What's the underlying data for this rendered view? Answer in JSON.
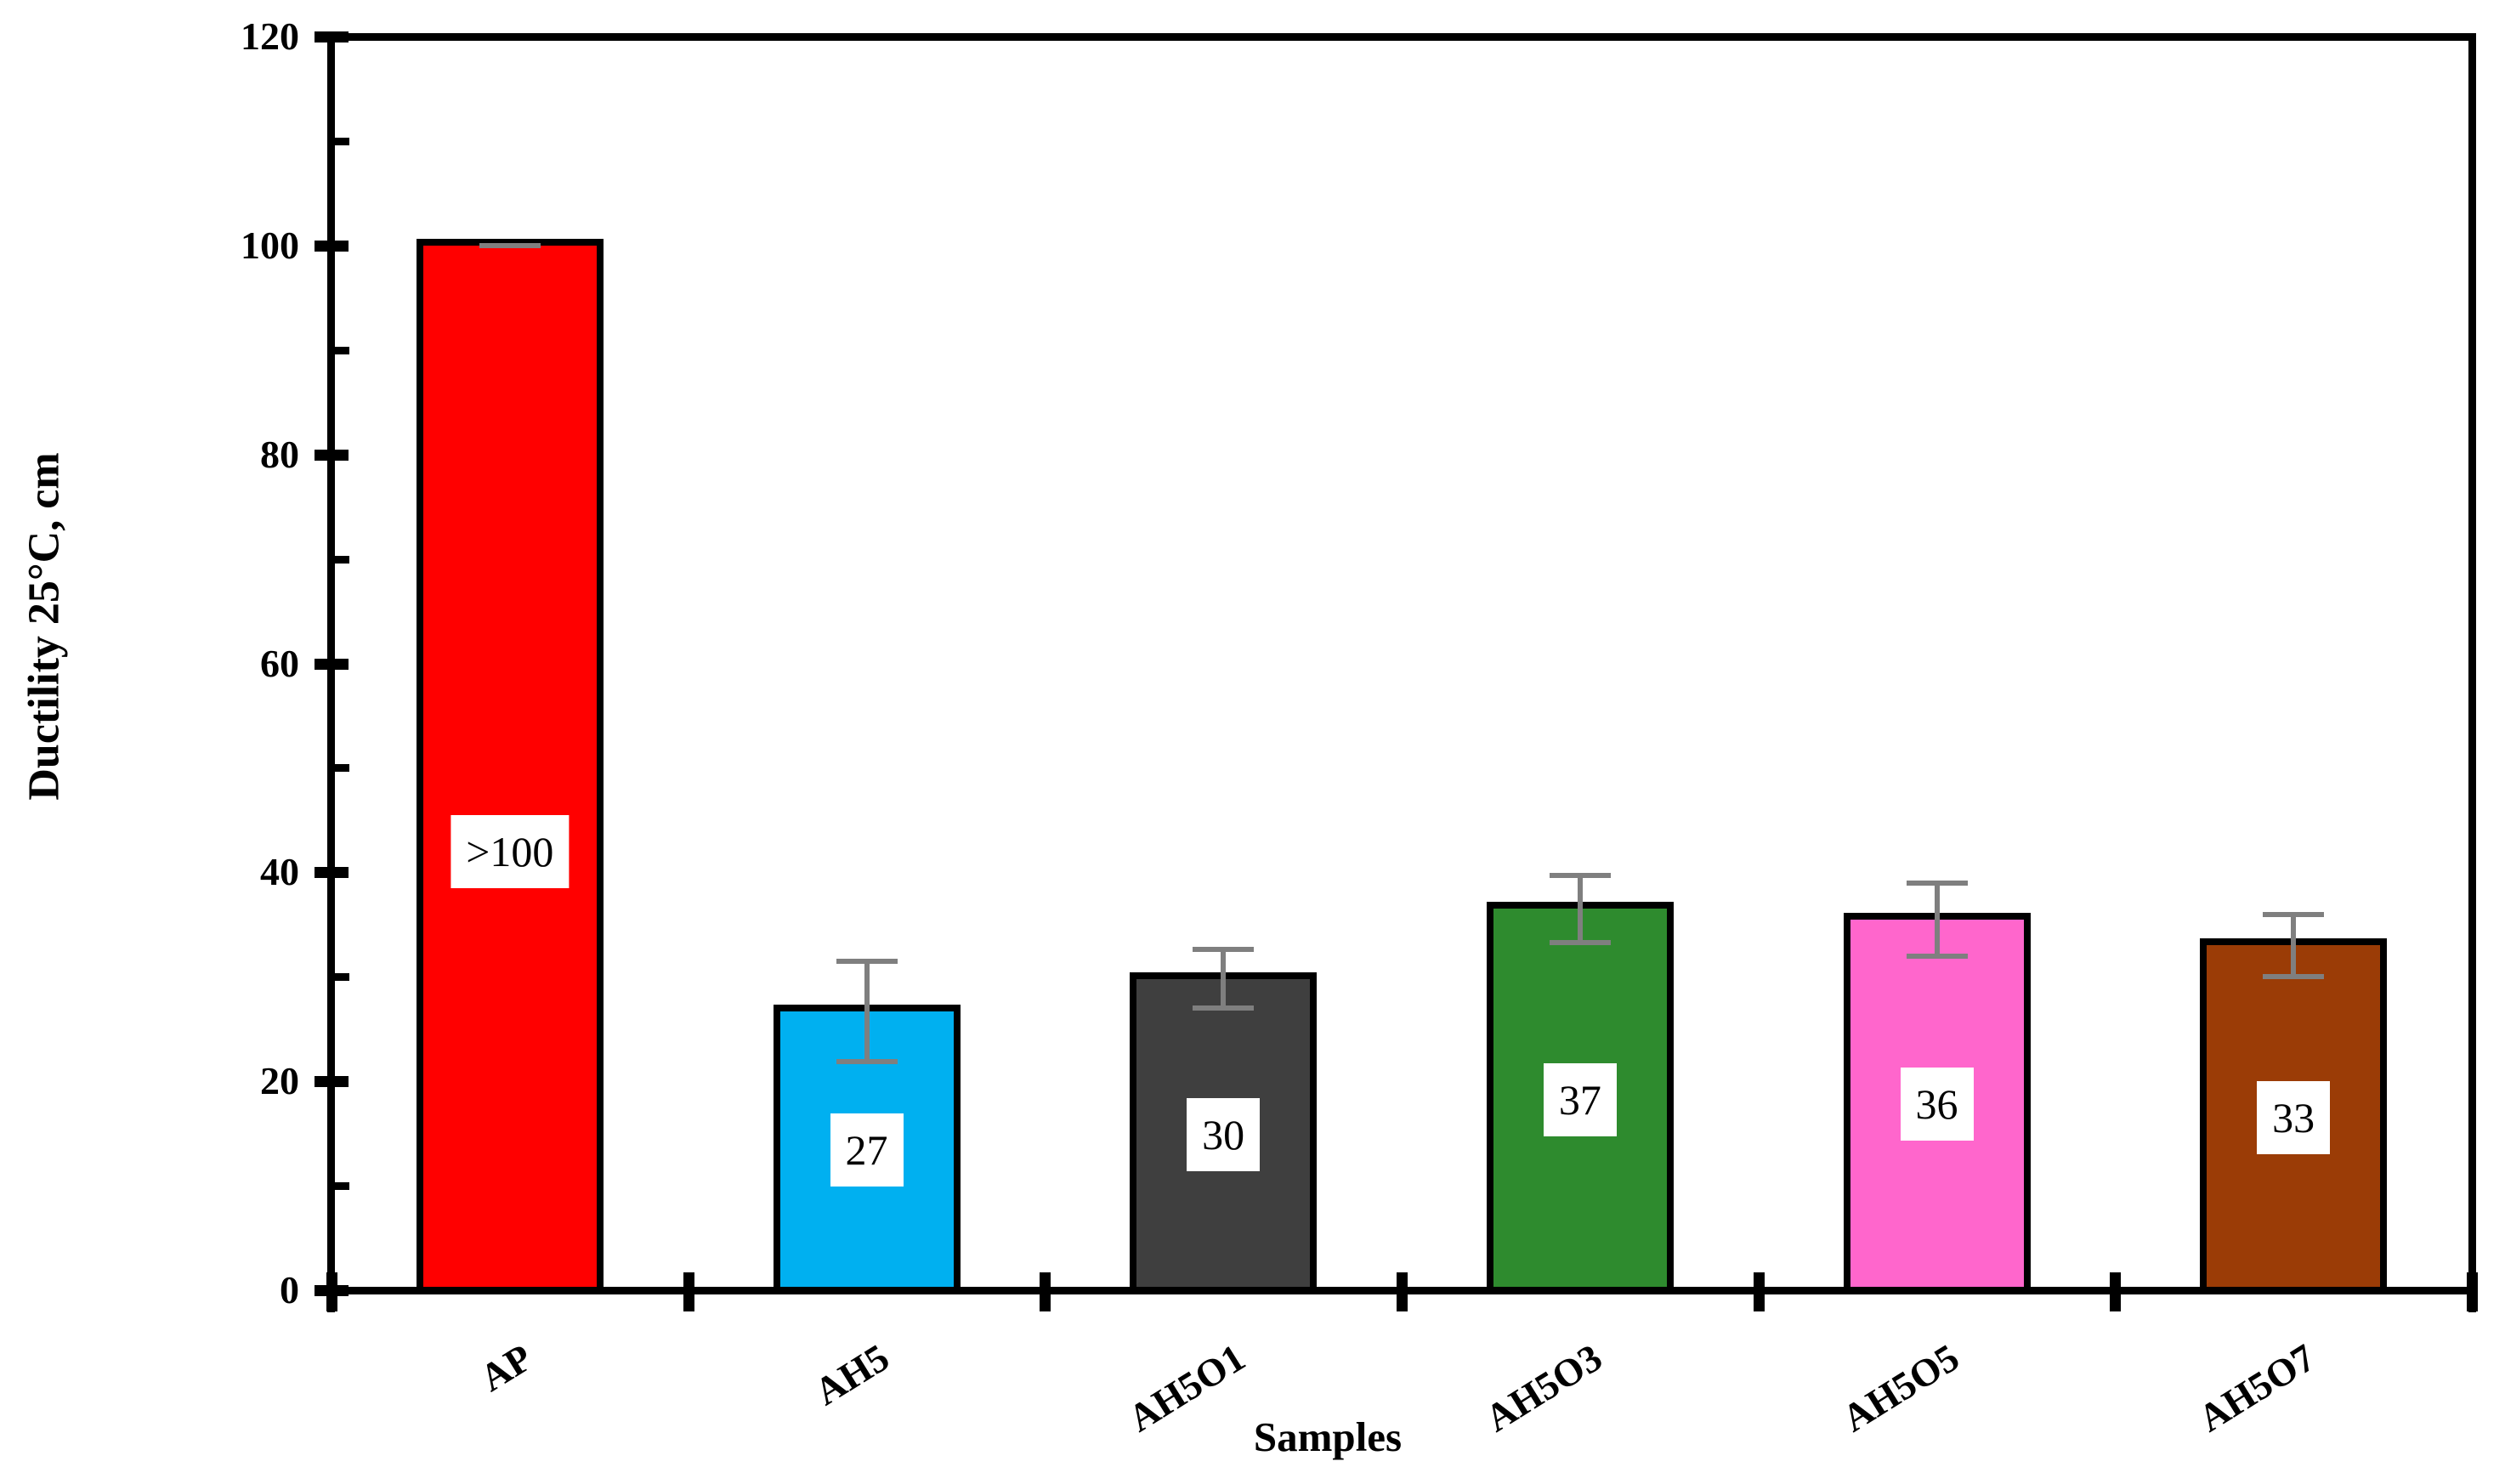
{
  "figure": {
    "background": "#FFFFFF"
  },
  "chart_data": {
    "type": "bar",
    "title": "",
    "xlabel": "Samples",
    "ylabel": "Ductility 25°C, cm",
    "ylim": [
      0,
      120
    ],
    "yticks": [
      0,
      20,
      40,
      60,
      80,
      100,
      120
    ],
    "ytick_labels": [
      "0",
      "20",
      "40",
      "60",
      "80",
      "100",
      "120"
    ],
    "yminorticks": [
      10,
      30,
      50,
      70,
      90,
      110
    ],
    "grid": false,
    "legend_position": "none",
    "categories": [
      "AP",
      "AH5",
      "AH5O1",
      "AH5O3",
      "AH5O5",
      "AH5O7"
    ],
    "bars": [
      {
        "category": "AP",
        "value": 100.0,
        "value_label": ">100",
        "error": 0.0,
        "fill": "#FF0000",
        "label_at_value": 42.0
      },
      {
        "category": "AH5",
        "value": 26.7,
        "value_label": "27",
        "error": 4.8,
        "fill": "#00B0F0",
        "label_at_value": 13.4
      },
      {
        "category": "AH5O1",
        "value": 29.8,
        "value_label": "30",
        "error": 2.8,
        "fill": "#3F3F3F",
        "label_at_value": 14.9
      },
      {
        "category": "AH5O3",
        "value": 36.5,
        "value_label": "37",
        "error": 3.2,
        "fill": "#2E8B2E",
        "label_at_value": 18.2
      },
      {
        "category": "AH5O5",
        "value": 35.5,
        "value_label": "36",
        "error": 3.5,
        "fill": "#FF66CC",
        "label_at_value": 17.8
      },
      {
        "category": "AH5O7",
        "value": 33.0,
        "value_label": "33",
        "error": 3.0,
        "fill": "#9B3C06",
        "label_at_value": 16.5
      }
    ],
    "styles": {
      "axis_color": "#000000",
      "bar_border_color": "#000000",
      "error_bar_color": "#7F7F7F",
      "value_label_box": "#FFFFFF",
      "value_label_text": "#000000"
    }
  }
}
